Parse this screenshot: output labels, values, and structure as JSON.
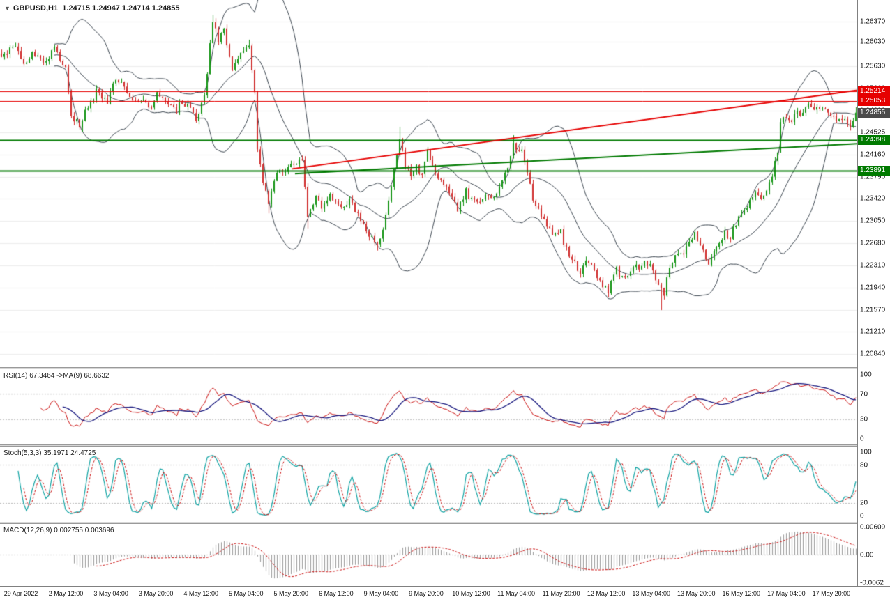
{
  "header": {
    "dropdown_icon": "▼",
    "symbol": "GBPUSD,H1",
    "ohlc_text": "1.24715 1.24947 1.24714 1.24855"
  },
  "colors": {
    "background": "#ffffff",
    "grid": "#ededed",
    "candle_up": "#149414",
    "candle_down": "#d12f2f",
    "bollinger": "#3c4650",
    "current_badge": "#4a4a4a",
    "rsi": "#cc1111",
    "rsi_ma": "#16167e",
    "stoch_k": "#0fa3a3",
    "stoch_d": "#cc1111",
    "macd_hist": "#9b9b9b",
    "macd_signal": "#cc1111",
    "level_dash": "#b8b8b8"
  },
  "chart_data": {
    "type": "candlestick",
    "title": "GBPUSD,H1",
    "ohlc_current": {
      "open": 1.24715,
      "high": 1.24947,
      "low": 1.24714,
      "close": 1.24855
    },
    "x_axis": {
      "bars_per_label": 16,
      "total_bars": 308,
      "labels": [
        "29 Apr 2022",
        "2 May 12:00",
        "3 May 04:00",
        "3 May 20:00",
        "4 May 12:00",
        "5 May 04:00",
        "5 May 20:00",
        "6 May 12:00",
        "9 May 04:00",
        "9 May 20:00",
        "10 May 12:00",
        "11 May 04:00",
        "11 May 20:00",
        "12 May 12:00",
        "13 May 04:00",
        "13 May 20:00",
        "16 May 12:00",
        "17 May 04:00",
        "17 May 20:00"
      ]
    },
    "y_axis": {
      "min": 1.2062,
      "max": 1.2673,
      "labels": [
        "1.26370",
        "1.26030",
        "1.25630",
        "1.25260",
        "1.24890",
        "1.24525",
        "1.24160",
        "1.23790",
        "1.23420",
        "1.23050",
        "1.22680",
        "1.22310",
        "1.21940",
        "1.21570",
        "1.21210",
        "1.20840"
      ]
    },
    "price_anchors": [
      [
        1,
        1.258
      ],
      [
        5,
        1.26
      ],
      [
        8,
        1.2565
      ],
      [
        11,
        1.2585
      ],
      [
        15,
        1.257
      ],
      [
        19,
        1.259
      ],
      [
        23,
        1.256
      ],
      [
        25,
        1.248
      ],
      [
        28,
        1.2465
      ],
      [
        30,
        1.249
      ],
      [
        34,
        1.252
      ],
      [
        38,
        1.2505
      ],
      [
        41,
        1.2545
      ],
      [
        44,
        1.253
      ],
      [
        48,
        1.25
      ],
      [
        50,
        1.251
      ],
      [
        54,
        1.2495
      ],
      [
        56,
        1.2515
      ],
      [
        60,
        1.25
      ],
      [
        63,
        1.249
      ],
      [
        65,
        1.2505
      ],
      [
        68,
        1.249
      ],
      [
        70,
        1.2475
      ],
      [
        73,
        1.251
      ],
      [
        75,
        1.26
      ],
      [
        76,
        1.264
      ],
      [
        78,
        1.2605
      ],
      [
        80,
        1.263
      ],
      [
        81,
        1.2595
      ],
      [
        83,
        1.256
      ],
      [
        85,
        1.2575
      ],
      [
        87,
        1.259
      ],
      [
        89,
        1.26
      ],
      [
        91,
        1.252
      ],
      [
        92,
        1.242
      ],
      [
        94,
        1.237
      ],
      [
        96,
        1.2335
      ],
      [
        98,
        1.237
      ],
      [
        100,
        1.2395
      ],
      [
        102,
        1.2385
      ],
      [
        104,
        1.24
      ],
      [
        106,
        1.2395
      ],
      [
        108,
        1.241
      ],
      [
        110,
        1.231
      ],
      [
        113,
        1.2345
      ],
      [
        115,
        1.233
      ],
      [
        118,
        1.235
      ],
      [
        120,
        1.2335
      ],
      [
        123,
        1.2325
      ],
      [
        125,
        1.234
      ],
      [
        128,
        1.2315
      ],
      [
        130,
        1.23
      ],
      [
        133,
        1.2275
      ],
      [
        135,
        1.2265
      ],
      [
        137,
        1.229
      ],
      [
        139,
        1.234
      ],
      [
        142,
        1.242
      ],
      [
        143,
        1.2445
      ],
      [
        145,
        1.24
      ],
      [
        147,
        1.2375
      ],
      [
        149,
        1.2395
      ],
      [
        151,
        1.238
      ],
      [
        153,
        1.242
      ],
      [
        155,
        1.2395
      ],
      [
        157,
        1.238
      ],
      [
        160,
        1.2365
      ],
      [
        162,
        1.2345
      ],
      [
        164,
        1.2325
      ],
      [
        167,
        1.2355
      ],
      [
        169,
        1.234
      ],
      [
        172,
        1.2335
      ],
      [
        174,
        1.235
      ],
      [
        177,
        1.234
      ],
      [
        179,
        1.236
      ],
      [
        182,
        1.2395
      ],
      [
        184,
        1.243
      ],
      [
        187,
        1.242
      ],
      [
        189,
        1.239
      ],
      [
        191,
        1.234
      ],
      [
        193,
        1.233
      ],
      [
        195,
        1.2305
      ],
      [
        197,
        1.229
      ],
      [
        199,
        1.228
      ],
      [
        201,
        1.2295
      ],
      [
        202,
        1.227
      ],
      [
        204,
        1.225
      ],
      [
        206,
        1.2235
      ],
      [
        208,
        1.222
      ],
      [
        210,
        1.2245
      ],
      [
        212,
        1.223
      ],
      [
        214,
        1.2215
      ],
      [
        216,
        1.22
      ],
      [
        218,
        1.219
      ],
      [
        219,
        1.221
      ],
      [
        221,
        1.2225
      ],
      [
        223,
        1.221
      ],
      [
        225,
        1.2215
      ],
      [
        227,
        1.223
      ],
      [
        229,
        1.2225
      ],
      [
        231,
        1.224
      ],
      [
        233,
        1.223
      ],
      [
        234,
        1.222
      ],
      [
        236,
        1.22
      ],
      [
        238,
        1.2185
      ],
      [
        239,
        1.2215
      ],
      [
        241,
        1.224
      ],
      [
        243,
        1.2255
      ],
      [
        245,
        1.225
      ],
      [
        247,
        1.227
      ],
      [
        249,
        1.2285
      ],
      [
        251,
        1.226
      ],
      [
        253,
        1.2245
      ],
      [
        254,
        1.2235
      ],
      [
        256,
        1.2255
      ],
      [
        258,
        1.227
      ],
      [
        260,
        1.2285
      ],
      [
        262,
        1.228
      ],
      [
        264,
        1.23
      ],
      [
        266,
        1.232
      ],
      [
        268,
        1.233
      ],
      [
        269,
        1.234
      ],
      [
        271,
        1.235
      ],
      [
        273,
        1.2345
      ],
      [
        275,
        1.236
      ],
      [
        277,
        1.238
      ],
      [
        279,
        1.242
      ],
      [
        280,
        1.2465
      ],
      [
        282,
        1.248
      ],
      [
        284,
        1.247
      ],
      [
        286,
        1.249
      ],
      [
        288,
        1.248
      ],
      [
        289,
        1.2495
      ],
      [
        291,
        1.25
      ],
      [
        293,
        1.249
      ],
      [
        295,
        1.2495
      ],
      [
        297,
        1.249
      ],
      [
        299,
        1.248
      ],
      [
        301,
        1.247
      ],
      [
        303,
        1.2475
      ],
      [
        305,
        1.2465
      ],
      [
        307,
        1.24855
      ]
    ],
    "wick_extremes": [
      [
        76,
        "h",
        1.2648
      ],
      [
        89,
        "h",
        1.2607
      ],
      [
        96,
        "l",
        1.2318
      ],
      [
        110,
        "l",
        1.2293
      ],
      [
        135,
        "l",
        1.2256
      ],
      [
        143,
        "h",
        1.2462
      ],
      [
        184,
        "h",
        1.2448
      ],
      [
        208,
        "l",
        1.2211
      ],
      [
        218,
        "l",
        1.2178
      ],
      [
        237,
        "l",
        1.2157
      ],
      [
        291,
        "h",
        1.2507
      ]
    ],
    "overlays": {
      "bollinger": {
        "period": 20,
        "deviation": 2
      },
      "horizontal_lines": [
        {
          "price": 1.25214,
          "color": "#e60000",
          "width": 1
        },
        {
          "price": 1.25053,
          "color": "#e60000",
          "width": 1
        },
        {
          "price": 1.24398,
          "color": "#007a00",
          "width": 2
        },
        {
          "price": 1.23891,
          "color": "#007a00",
          "width": 2
        }
      ],
      "trend_lines": [
        {
          "from_bar": 105,
          "from_price": 1.2392,
          "to_bar": 308,
          "to_price": 1.2523,
          "color": "#e60000",
          "width": 2
        },
        {
          "from_bar": 106,
          "from_price": 1.2384,
          "to_bar": 308,
          "to_price": 1.2434,
          "color": "#007a00",
          "width": 2
        }
      ]
    },
    "indicator_panels": [
      {
        "id": "rsi",
        "label": "RSI(14) 67.3464 ->MA(9) 68.6632",
        "period": 14,
        "ma_period": 9,
        "current": {
          "rsi": 67.3464,
          "ma": 68.6632
        },
        "levels": [
          70,
          30
        ],
        "axis_labels": [
          "100",
          "70",
          "30",
          "0"
        ],
        "range": [
          0,
          100
        ]
      },
      {
        "id": "stoch",
        "label": "Stoch(5,3,3) 35.1971 24.4725",
        "params": "5,3,3",
        "current": {
          "k": 35.1971,
          "d": 24.4725
        },
        "levels": [
          80,
          20
        ],
        "axis_labels": [
          "100",
          "80",
          "20",
          "0"
        ],
        "range": [
          0,
          100
        ]
      },
      {
        "id": "macd",
        "label": "MACD(12,26,9) 0.002755 0.003696",
        "params": "12,26,9",
        "current": {
          "macd": 0.002755,
          "signal": 0.003696
        },
        "axis_labels": [
          "0.00609",
          "0.00",
          "-0.0062"
        ],
        "range": [
          -0.0062,
          0.00609
        ]
      }
    ]
  }
}
